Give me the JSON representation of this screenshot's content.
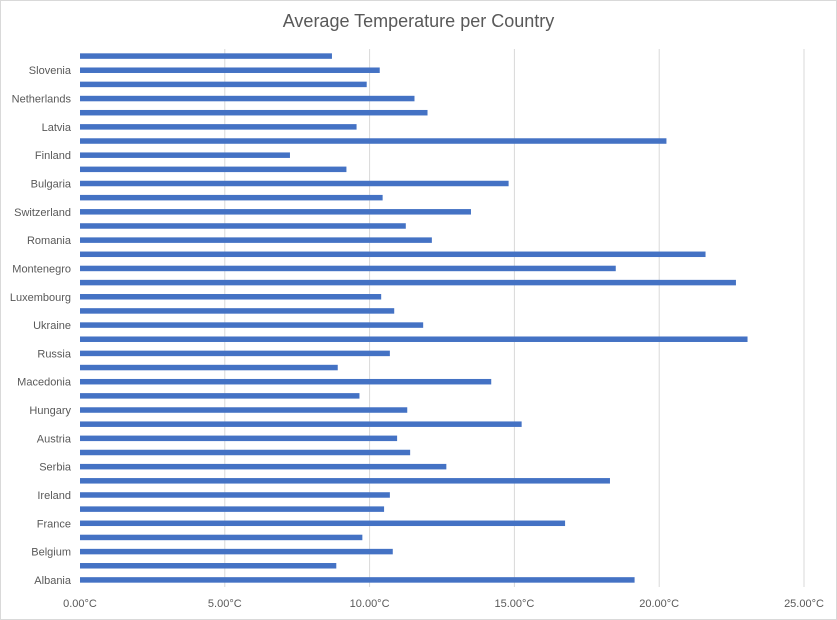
{
  "chart_data": {
    "type": "bar",
    "orientation": "horizontal",
    "title": "Average Temperature per Country",
    "xlabel": "",
    "ylabel": "",
    "xlim": [
      0,
      25
    ],
    "x_ticks": [
      0,
      5,
      10,
      15,
      20,
      25
    ],
    "x_tick_labels": [
      "0.00°C",
      "5.00°C",
      "10.00°C",
      "15.00°C",
      "20.00°C",
      "25.00°C"
    ],
    "grid": "vertical",
    "legend": "none",
    "bar_color": "#4472c4",
    "categories_bottom_to_top": [
      "Albania",
      "",
      "Belgium",
      "",
      "France",
      "",
      "Ireland",
      "",
      "Serbia",
      "",
      "Austria",
      "",
      "Hungary",
      "",
      "Macedonia",
      "",
      "Russia",
      "",
      "Ukraine",
      "",
      "Luxembourg",
      "",
      "Montenegro",
      "",
      "Romania",
      "",
      "Switzerland",
      "",
      "Bulgaria",
      "",
      "Finland",
      "",
      "Latvia",
      "",
      "Netherlands",
      "",
      "Slovenia",
      ""
    ],
    "values_bottom_to_top": [
      19.15,
      8.85,
      10.8,
      9.75,
      16.75,
      10.5,
      10.7,
      18.3,
      12.65,
      11.4,
      10.95,
      15.25,
      11.3,
      9.65,
      14.2,
      8.9,
      10.7,
      23.05,
      11.85,
      10.85,
      10.4,
      22.65,
      18.5,
      21.6,
      12.15,
      11.25,
      13.5,
      10.45,
      14.8,
      9.2,
      7.25,
      20.25,
      9.55,
      12.0,
      11.55,
      9.9,
      10.35,
      8.7
    ]
  }
}
